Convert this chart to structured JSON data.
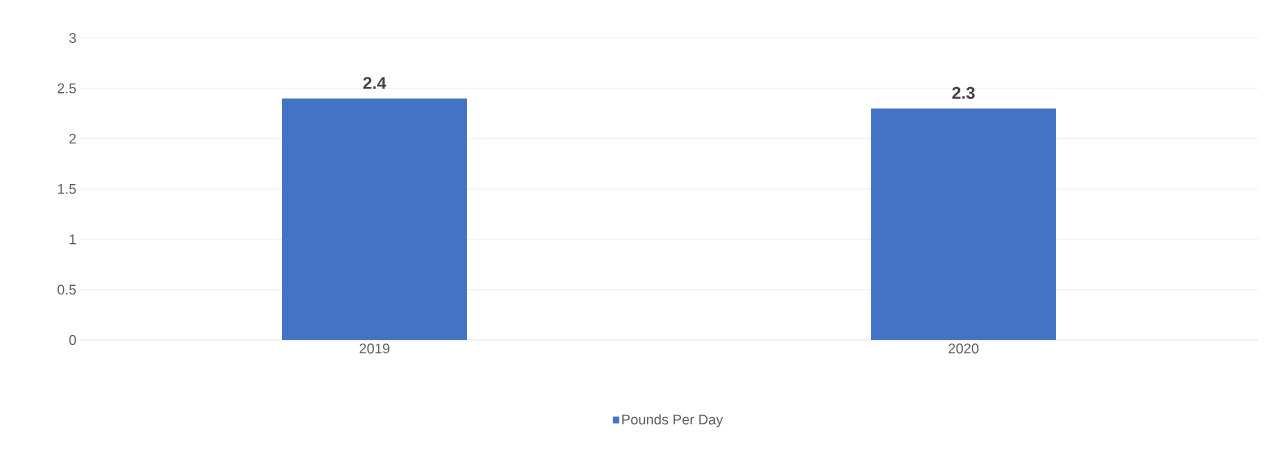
{
  "chart_data": {
    "type": "bar",
    "categories": [
      "2019",
      "2020"
    ],
    "series": [
      {
        "name": "Pounds Per Day",
        "color": "#4472c4",
        "values": [
          2.4,
          2.3
        ]
      }
    ],
    "ylim": [
      0,
      3
    ],
    "yticks": [
      0,
      0.5,
      1,
      1.5,
      2,
      2.5,
      3
    ],
    "grid": "y",
    "data_labels": true,
    "legend": "bottom"
  }
}
